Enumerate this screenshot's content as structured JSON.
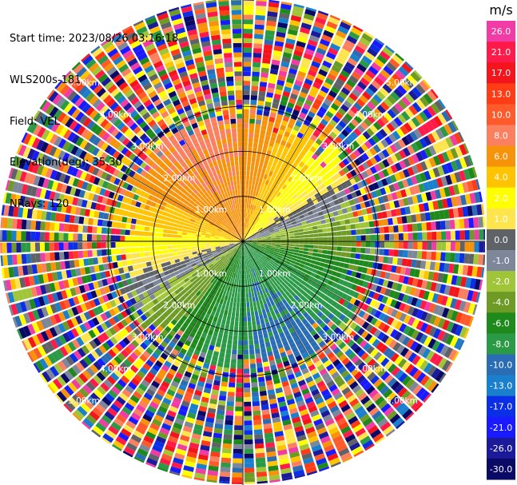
{
  "header": {
    "start_time": "Start time: 2023/08/26 03:16:18",
    "instrument": "WLS200s-181",
    "field": "Field: VEL",
    "elevation": "Elevation(deg): 35.30",
    "nrays": "NRays: 120"
  },
  "chart_data": {
    "type": "heatmap",
    "projection": "polar-ppi",
    "field": "VEL",
    "units": "m/s",
    "nrays": 120,
    "elevation_deg": 35.3,
    "max_range_km": 5.4,
    "range_ring_labels_km": [
      "1.00km",
      "2.00km",
      "3.00km",
      "4.00km",
      "5.00km"
    ],
    "colorbar": {
      "label": "m/s",
      "ticks": [
        "26.0",
        "21.0",
        "17.0",
        "13.0",
        "10.0",
        "8.0",
        "6.0",
        "4.0",
        "2.0",
        "1.0",
        "0.0",
        "-1.0",
        "-2.0",
        "-4.0",
        "-6.0",
        "-8.0",
        "-10.0",
        "-13.0",
        "-17.0",
        "-21.0",
        "-26.0",
        "-30.0"
      ],
      "colors": [
        "#f03ca4",
        "#ff1a4a",
        "#f3141c",
        "#fe3c16",
        "#fe5a2c",
        "#fa8060",
        "#f7930b",
        "#ffc300",
        "#ffff00",
        "#ffe54d",
        "#5f6368",
        "#7e8699",
        "#a1c538",
        "#6e9b26",
        "#1f8a1c",
        "#2a9a46",
        "#2a6db4",
        "#1a7fcc",
        "#0a2fe6",
        "#1a1aff",
        "#1a1a9a",
        "#0a0a66"
      ]
    },
    "velocity_pattern": {
      "description": "Toward-the-instrument winds from NNW/N quadrant (positive ~6-9 m/s, orange), near-zero band oriented ENE-WSW, negative ~-6 to -8 m/s (green/blue) to the SSE; noise beyond ~2.9 km",
      "peak_positive_ms": 8.0,
      "peak_negative_ms": -8.0,
      "signal_edge_km": 2.9
    }
  }
}
